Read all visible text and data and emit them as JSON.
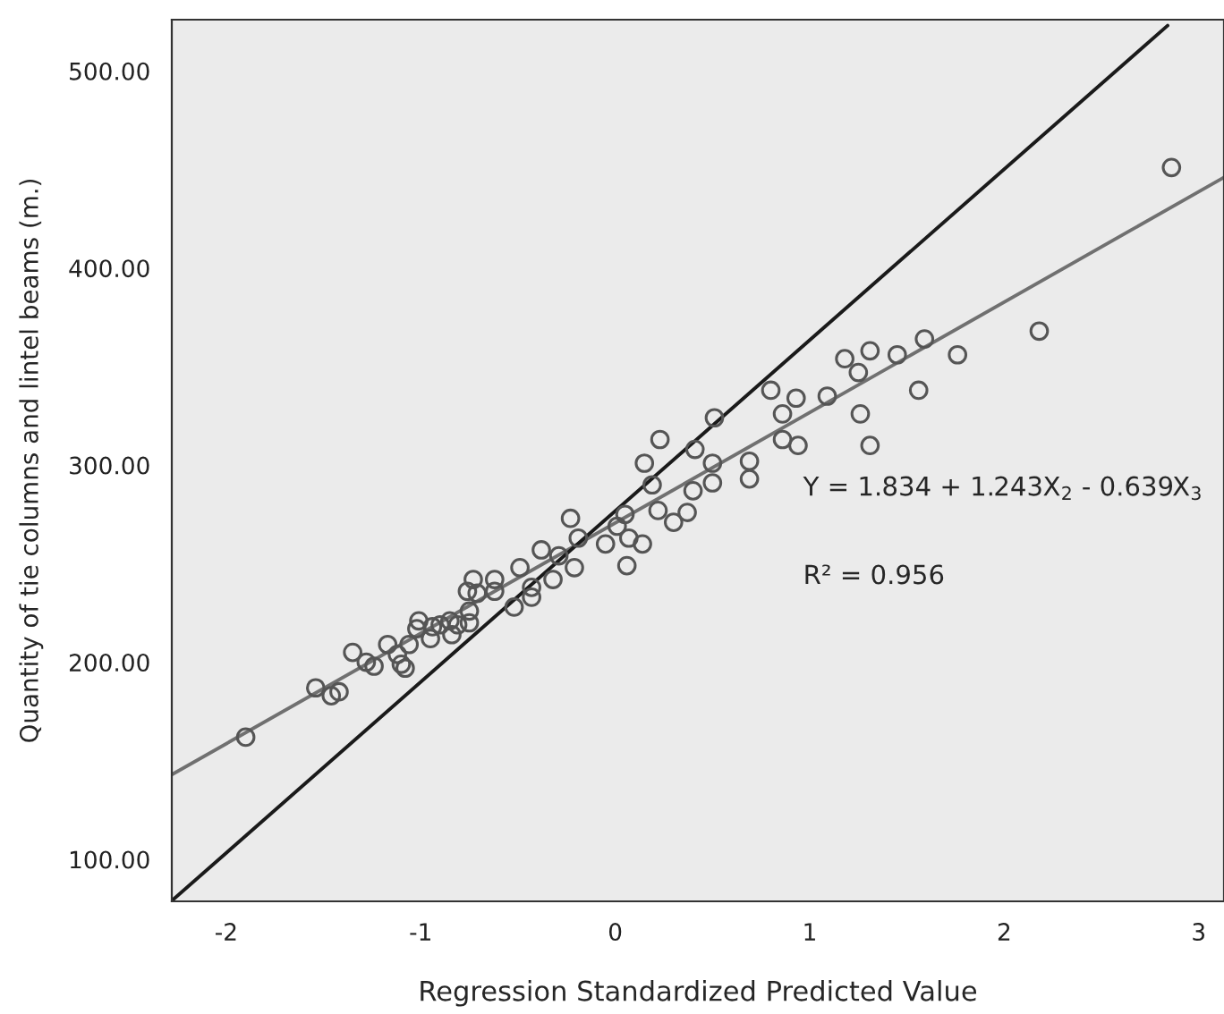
{
  "chart_data": {
    "type": "scatter",
    "xlabel": "Regression Standardized Predicted Value",
    "ylabel": "Quantity of tie columns and lintel beams (m.)",
    "xlim": [
      -2.28,
      3.13
    ],
    "ylim": [
      78.7,
      526
    ],
    "xticks": [
      -2,
      -1,
      0,
      1,
      2,
      3
    ],
    "yticks": [
      {
        "value": 100,
        "label": "100.00"
      },
      {
        "value": 200,
        "label": "200.00"
      },
      {
        "value": 300,
        "label": "300.00"
      },
      {
        "value": 400,
        "label": "400.00"
      },
      {
        "value": 500,
        "label": "500.00"
      }
    ],
    "grid": false,
    "legend": false,
    "annotations": [
      "Y = 1.834 + 1.243X$_{2}$ - 0.639X$_{3}$",
      "R² = 0.956"
    ],
    "series": [
      {
        "marker": "circle",
        "color": "#555555",
        "x": [
          -1.9,
          -1.54,
          -1.46,
          -1.42,
          -1.35,
          -1.28,
          -1.24,
          -1.17,
          -1.12,
          -1.1,
          -1.08,
          -1.06,
          -1.01,
          -1.02,
          -0.95,
          -0.94,
          -0.9,
          -0.84,
          -0.85,
          -0.81,
          -0.75,
          -0.75,
          -0.76,
          -0.73,
          -0.71,
          -0.62,
          -0.62,
          -0.52,
          -0.49,
          -0.43,
          -0.43,
          -0.38,
          -0.32,
          -0.29,
          -0.23,
          -0.19,
          -0.21,
          -0.05,
          0.05,
          0.06,
          0.07,
          0.14,
          0.15,
          0.19,
          0.23,
          0.22,
          0.01,
          0.3,
          0.37,
          0.41,
          0.4,
          0.5,
          0.5,
          0.51,
          0.69,
          0.69,
          0.8,
          0.86,
          0.93,
          0.86,
          0.94,
          1.09,
          1.18,
          1.25,
          1.31,
          1.26,
          1.31,
          1.45,
          1.59,
          1.56,
          1.76,
          2.18,
          2.86
        ],
        "values": [
          162,
          187,
          183,
          185,
          205,
          200,
          198,
          209,
          204,
          199,
          197,
          209,
          221,
          217,
          212,
          218,
          219,
          214,
          221,
          219,
          220,
          226,
          236,
          242,
          235,
          242,
          236,
          228,
          248,
          238,
          233,
          257,
          242,
          254,
          273,
          263,
          248,
          260,
          275,
          249,
          263,
          260,
          301,
          290,
          313,
          277,
          269,
          271,
          276,
          308,
          287,
          301,
          291,
          324,
          302,
          293,
          338,
          326,
          334,
          313,
          310,
          335,
          354,
          347,
          358,
          326,
          310,
          356,
          364,
          338,
          356,
          368,
          451
        ]
      },
      {
        "type": "line",
        "color": "#707070",
        "x": [
          -2.28,
          3.13
        ],
        "values": [
          143,
          446
        ]
      },
      {
        "type": "line",
        "color": "#1a1a1a",
        "x": [
          -2.28,
          2.84
        ],
        "values": [
          79,
          523
        ]
      }
    ]
  }
}
